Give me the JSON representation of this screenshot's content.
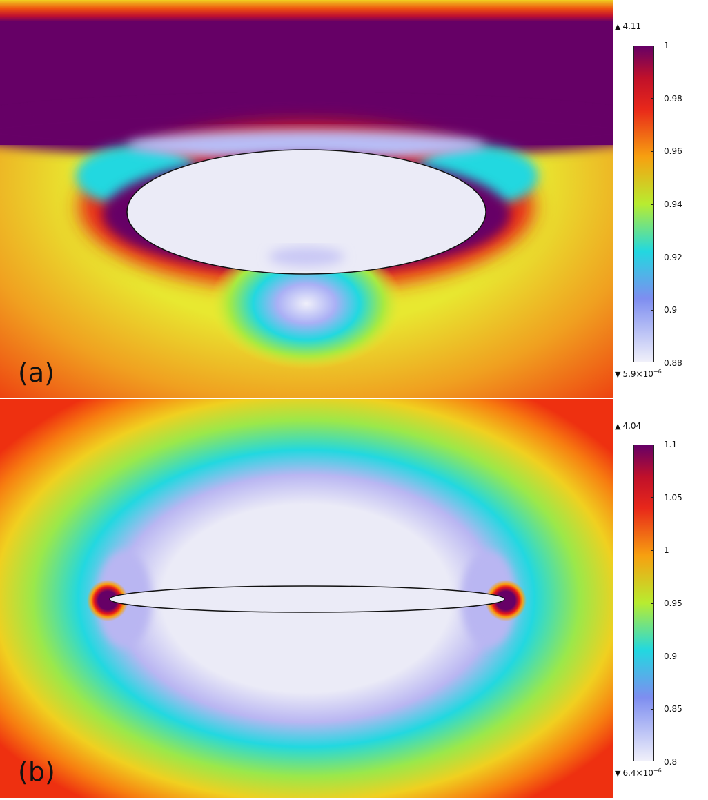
{
  "panels": [
    {
      "label": "(a)",
      "max_value": "4.11",
      "min_value_base": "5.9×10",
      "min_value_exp": "−6",
      "colorbar": {
        "ticks": [
          "1",
          "0.98",
          "0.96",
          "0.94",
          "0.92",
          "0.9",
          "0.88"
        ]
      }
    },
    {
      "label": "(b)",
      "max_value": "4.04",
      "min_value_base": "6.4×10",
      "min_value_exp": "−6",
      "colorbar": {
        "ticks": [
          "1.1",
          "1.05",
          "1",
          "0.95",
          "0.9",
          "0.85",
          "0.8"
        ]
      }
    }
  ],
  "colors": {
    "dark_purple": "#660066",
    "red": "#e8181a",
    "orange": "#f77d10",
    "yellow": "#e8e81e",
    "green": "#9be84a",
    "cyan": "#22d8e0",
    "blue": "#7e8ef0",
    "lavender": "#c9c8f5",
    "pale": "#ebebf7"
  }
}
